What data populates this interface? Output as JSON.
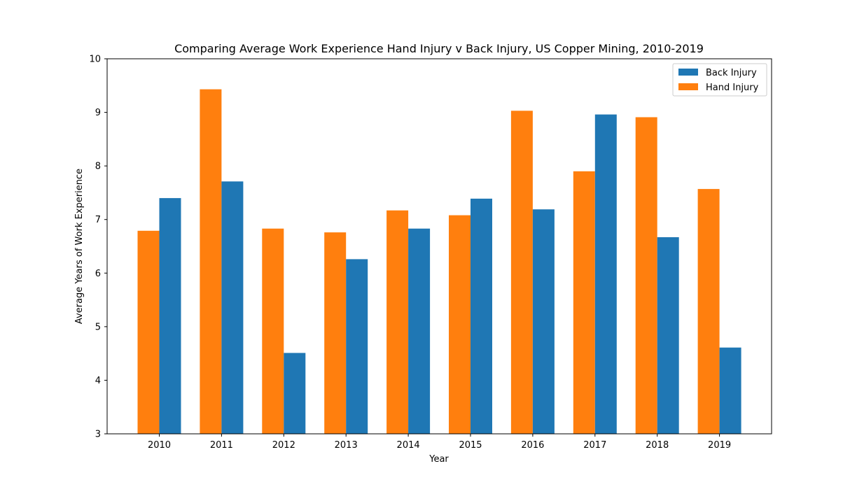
{
  "chart_data": {
    "type": "bar",
    "title": "Comparing Average Work Experience Hand Injury v Back Injury, US Copper Mining, 2010-2019",
    "xlabel": "Year",
    "ylabel": "Average Years of Work Experience",
    "ylim": [
      3,
      10
    ],
    "yticks": [
      "3",
      "4",
      "5",
      "6",
      "7",
      "8",
      "9",
      "10"
    ],
    "grid": false,
    "legend_position": "top-right",
    "categories": [
      "2010",
      "2011",
      "2012",
      "2013",
      "2014",
      "2015",
      "2016",
      "2017",
      "2018",
      "2019"
    ],
    "series": [
      {
        "name": "Back Injury",
        "color": "#1f77b4",
        "values": [
          7.4,
          7.71,
          4.51,
          6.26,
          6.83,
          7.39,
          7.19,
          8.96,
          6.67,
          4.61
        ]
      },
      {
        "name": "Hand Injury",
        "color": "#ff7f0e",
        "values": [
          6.79,
          9.43,
          6.83,
          6.76,
          7.17,
          7.08,
          9.03,
          7.9,
          8.91,
          7.57
        ]
      }
    ],
    "bar_order": [
      "Hand Injury",
      "Back Injury"
    ]
  }
}
